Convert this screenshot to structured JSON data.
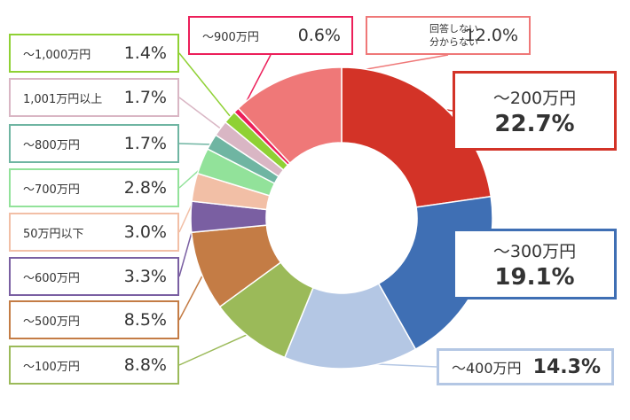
{
  "chart_data": {
    "type": "pie",
    "style": "donut",
    "title": "",
    "slices": [
      {
        "label": "～200万円",
        "value": 22.7,
        "display": "22.7%",
        "color": "#d33327"
      },
      {
        "label": "～300万円",
        "value": 19.1,
        "display": "19.1%",
        "color": "#3f6fb4"
      },
      {
        "label": "～400万円",
        "value": 14.3,
        "display": "14.3%",
        "color": "#b4c7e4"
      },
      {
        "label": "～100万円",
        "value": 8.8,
        "display": "8.8%",
        "color": "#9bba59"
      },
      {
        "label": "～500万円",
        "value": 8.5,
        "display": "8.5%",
        "color": "#c47c45"
      },
      {
        "label": "～600万円",
        "value": 3.3,
        "display": "3.3%",
        "color": "#7a5fa2"
      },
      {
        "label": "50万円以下",
        "value": 3.0,
        "display": "3.0%",
        "color": "#f2bfa6"
      },
      {
        "label": "～700万円",
        "value": 2.8,
        "display": "2.8%",
        "color": "#92e29a"
      },
      {
        "label": "～800万円",
        "value": 1.7,
        "display": "1.7%",
        "color": "#6fb5a2"
      },
      {
        "label": "1,001万円以上",
        "value": 1.7,
        "display": "1.7%",
        "color": "#d9b6c4"
      },
      {
        "label": "～1,000万円",
        "value": 1.4,
        "display": "1.4%",
        "color": "#8fd134"
      },
      {
        "label": "～900万円",
        "value": 0.6,
        "display": "0.6%",
        "color": "#ec1f5a"
      },
      {
        "label": "回答しない\n分からない",
        "value": 12.0,
        "display": "12.0%",
        "color": "#ef7878"
      }
    ]
  }
}
